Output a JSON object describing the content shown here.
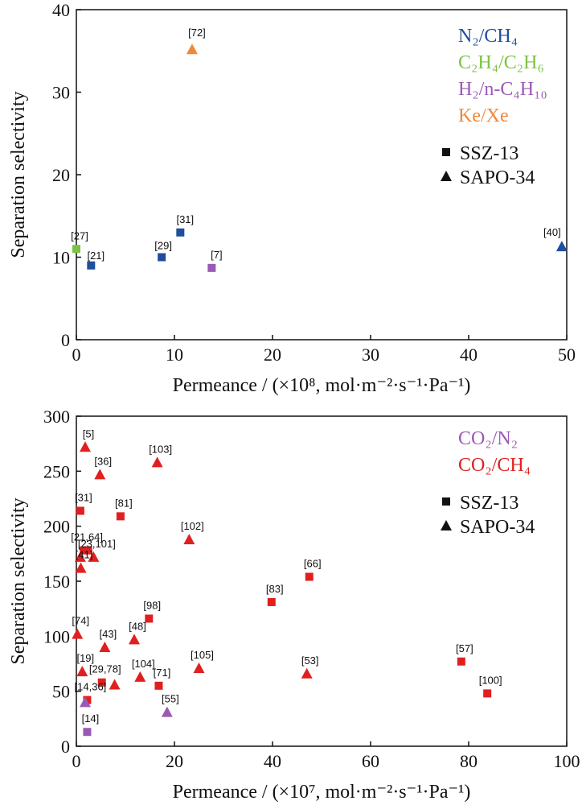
{
  "chart_data": [
    {
      "type": "scatter",
      "xlabel": "Permeance / (×10⁸, mol·m⁻²·s⁻¹·Pa⁻¹)",
      "ylabel": "Separation selectivity",
      "xlim": [
        0,
        50
      ],
      "ylim": [
        0,
        40
      ],
      "x_ticks": [
        0,
        10,
        20,
        30,
        40,
        50
      ],
      "y_ticks": [
        0,
        10,
        20,
        30,
        40
      ],
      "legend_position": "top-right",
      "systems": [
        {
          "label": "N₂/CH₄",
          "color": "#1f4e9c"
        },
        {
          "label": "C₂H₄/C₂H₆",
          "color": "#7dc242"
        },
        {
          "label": "H₂/n-C₄H₁₀",
          "color": "#9b59b6"
        },
        {
          "label": "Ke/Xe",
          "color": "#f0883a"
        }
      ],
      "markers": [
        {
          "label": "SSZ-13",
          "shape": "square"
        },
        {
          "label": "SAPO-34",
          "shape": "triangle"
        }
      ],
      "points": [
        {
          "x": 0.0,
          "y": 11.0,
          "system": 1,
          "shape": "square",
          "label": "[27]"
        },
        {
          "x": 1.5,
          "y": 9.0,
          "system": 0,
          "shape": "square",
          "label": "[21]"
        },
        {
          "x": 8.7,
          "y": 10.0,
          "system": 0,
          "shape": "square",
          "label": "[29]"
        },
        {
          "x": 10.6,
          "y": 13.0,
          "system": 0,
          "shape": "square",
          "label": "[31]"
        },
        {
          "x": 13.8,
          "y": 8.7,
          "system": 2,
          "shape": "square",
          "label": "[7]"
        },
        {
          "x": 11.8,
          "y": 35.2,
          "system": 3,
          "shape": "triangle",
          "label": "[72]"
        },
        {
          "x": 49.5,
          "y": 11.3,
          "system": 0,
          "shape": "triangle",
          "label": "[40]"
        }
      ]
    },
    {
      "type": "scatter",
      "xlabel": "Permeance / (×10⁷, mol·m⁻²·s⁻¹·Pa⁻¹)",
      "ylabel": "Separation selectivity",
      "xlim": [
        0,
        100
      ],
      "ylim": [
        0,
        300
      ],
      "x_ticks": [
        0,
        20,
        40,
        60,
        80,
        100
      ],
      "y_ticks": [
        0,
        50,
        100,
        150,
        200,
        250,
        300
      ],
      "legend_position": "top-right",
      "systems": [
        {
          "label": "CO₂/N₂",
          "color": "#9b59b6"
        },
        {
          "label": "CO₂/CH₄",
          "color": "#e02020"
        }
      ],
      "markers": [
        {
          "label": "SSZ-13",
          "shape": "square"
        },
        {
          "label": "SAPO-34",
          "shape": "triangle"
        }
      ],
      "points": [
        {
          "x": 1.8,
          "y": 272,
          "system": 1,
          "shape": "triangle",
          "label": "[5]"
        },
        {
          "x": 4.8,
          "y": 247,
          "system": 1,
          "shape": "triangle",
          "label": "[36]"
        },
        {
          "x": 16.5,
          "y": 258,
          "system": 1,
          "shape": "triangle",
          "label": "[103]"
        },
        {
          "x": 0.8,
          "y": 214,
          "system": 1,
          "shape": "square",
          "label": "[31]"
        },
        {
          "x": 9.0,
          "y": 209,
          "system": 1,
          "shape": "square",
          "label": "[81]"
        },
        {
          "x": 23.0,
          "y": 188,
          "system": 1,
          "shape": "triangle",
          "label": "[102]"
        },
        {
          "x": 1.5,
          "y": 178,
          "system": 1,
          "shape": "square",
          "label": "[21,64]"
        },
        {
          "x": 2.4,
          "y": 178,
          "system": 1,
          "shape": "square",
          "label": ""
        },
        {
          "x": 0.8,
          "y": 172,
          "system": 1,
          "shape": "triangle",
          "label": ""
        },
        {
          "x": 3.5,
          "y": 172,
          "system": 1,
          "shape": "triangle",
          "label": "[23,101]"
        },
        {
          "x": 0.9,
          "y": 162,
          "system": 1,
          "shape": "triangle",
          "label": "[41]"
        },
        {
          "x": 47.5,
          "y": 154,
          "system": 1,
          "shape": "square",
          "label": "[66]"
        },
        {
          "x": 39.8,
          "y": 131,
          "system": 1,
          "shape": "square",
          "label": "[83]"
        },
        {
          "x": 14.8,
          "y": 116,
          "system": 1,
          "shape": "square",
          "label": "[98]"
        },
        {
          "x": 0.2,
          "y": 102,
          "system": 1,
          "shape": "triangle",
          "label": "[74]"
        },
        {
          "x": 11.8,
          "y": 97,
          "system": 1,
          "shape": "triangle",
          "label": "[48]"
        },
        {
          "x": 5.8,
          "y": 90,
          "system": 1,
          "shape": "triangle",
          "label": "[43]"
        },
        {
          "x": 1.2,
          "y": 68,
          "system": 1,
          "shape": "triangle",
          "label": "[19]"
        },
        {
          "x": 25.0,
          "y": 71,
          "system": 1,
          "shape": "triangle",
          "label": "[105]"
        },
        {
          "x": 13.0,
          "y": 63,
          "system": 1,
          "shape": "triangle",
          "label": "[104]"
        },
        {
          "x": 47.0,
          "y": 66,
          "system": 1,
          "shape": "triangle",
          "label": "[53]"
        },
        {
          "x": 78.5,
          "y": 77,
          "system": 1,
          "shape": "square",
          "label": "[57]"
        },
        {
          "x": 5.2,
          "y": 58,
          "system": 1,
          "shape": "square",
          "label": "[29,78]"
        },
        {
          "x": 7.8,
          "y": 56,
          "system": 1,
          "shape": "triangle",
          "label": ""
        },
        {
          "x": 16.8,
          "y": 55,
          "system": 1,
          "shape": "square",
          "label": "[71]"
        },
        {
          "x": 83.8,
          "y": 48,
          "system": 1,
          "shape": "square",
          "label": "[100]"
        },
        {
          "x": 2.2,
          "y": 42,
          "system": 1,
          "shape": "square",
          "label": "[14,36]"
        },
        {
          "x": 1.8,
          "y": 40,
          "system": 0,
          "shape": "triangle",
          "label": ""
        },
        {
          "x": 18.5,
          "y": 31,
          "system": 0,
          "shape": "triangle",
          "label": "[55]"
        },
        {
          "x": 2.2,
          "y": 13,
          "system": 0,
          "shape": "square",
          "label": "[14]"
        }
      ]
    }
  ]
}
